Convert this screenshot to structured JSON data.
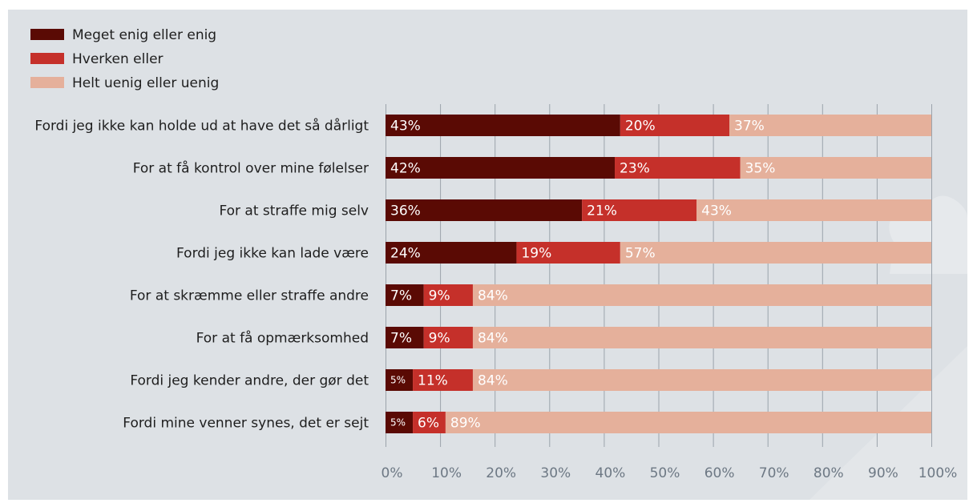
{
  "chart_data": {
    "type": "bar",
    "orientation": "horizontal",
    "stacked": true,
    "percent_stacked": true,
    "legend_position": "top-left",
    "grid": true,
    "xlim": [
      0,
      100
    ],
    "x_ticks": [
      "0%",
      "10%",
      "20%",
      "30%",
      "40%",
      "50%",
      "60%",
      "70%",
      "80%",
      "90%",
      "100%"
    ],
    "categories": [
      "Fordi jeg ikke kan holde ud at have det så dårligt",
      "For at få kontrol over mine følelser",
      "For at straffe mig selv",
      "Fordi jeg ikke kan lade være",
      "For at skræmme eller straffe andre",
      "For at få opmærksomhed",
      "Fordi jeg kender andre, der gør det",
      "Fordi mine venner synes, det er sejt"
    ],
    "series": [
      {
        "name": "Meget enig eller enig",
        "color": "#5a0a04",
        "label_color": "#ffffff",
        "values": [
          43,
          42,
          36,
          24,
          7,
          7,
          5,
          5
        ],
        "labels": [
          "43%",
          "42%",
          "36%",
          "24%",
          "7%",
          "7%",
          "5%",
          "5%"
        ]
      },
      {
        "name": "Hverken eller",
        "color": "#c5302a",
        "label_color": "#ffffff",
        "values": [
          20,
          23,
          21,
          19,
          9,
          9,
          11,
          6
        ],
        "labels": [
          "20%",
          "23%",
          "21%",
          "19%",
          "9%",
          "9%",
          "11%",
          "6%"
        ]
      },
      {
        "name": "Helt uenig eller uenig",
        "color": "#e5b09b",
        "label_color": "#ffffff",
        "values": [
          37,
          35,
          43,
          57,
          84,
          84,
          84,
          89
        ],
        "labels": [
          "37%",
          "35%",
          "43%",
          "57%",
          "84%",
          "84%",
          "84%",
          "89%"
        ]
      }
    ]
  }
}
